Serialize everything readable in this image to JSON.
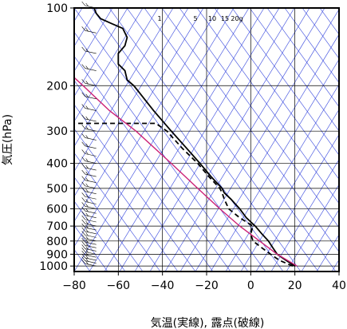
{
  "chart_data": {
    "type": "line",
    "title": "",
    "xlabel": "気温(実線), 露点(破線)",
    "ylabel": "気圧(hPa)",
    "xlim": [
      -80,
      40
    ],
    "ylim": [
      1050,
      100
    ],
    "y_scale": "log",
    "x_ticks": [
      "−80",
      "−60",
      "−40",
      "−20",
      "0",
      "20",
      "40"
    ],
    "x_tick_values": [
      -80,
      -60,
      -40,
      -20,
      0,
      20,
      40
    ],
    "y_ticks": [
      "100",
      "200",
      "300",
      "400",
      "500",
      "600",
      "700",
      "800",
      "900",
      "1000"
    ],
    "y_tick_values": [
      100,
      200,
      300,
      400,
      500,
      600,
      700,
      800,
      900,
      1000
    ],
    "mixing_ratio_labels": [
      "1",
      "5",
      "10",
      "15",
      "20g"
    ],
    "series": [
      {
        "style": "solid",
        "color": "#000000",
        "points": [
          [
            20,
            1000
          ],
          [
            18,
            975
          ],
          [
            16,
            950
          ],
          [
            14,
            925
          ],
          [
            12,
            900
          ],
          [
            10,
            850
          ],
          [
            8,
            800
          ],
          [
            5,
            750
          ],
          [
            2,
            700
          ],
          [
            -2,
            650
          ],
          [
            -5,
            600
          ],
          [
            -9,
            550
          ],
          [
            -12,
            520
          ],
          [
            -13,
            500
          ],
          [
            -18,
            450
          ],
          [
            -23,
            400
          ],
          [
            -29,
            350
          ],
          [
            -36,
            300
          ],
          [
            -44,
            250
          ],
          [
            -51,
            210
          ],
          [
            -53,
            200
          ],
          [
            -56,
            190
          ],
          [
            -57,
            175
          ],
          [
            -60,
            165
          ],
          [
            -60,
            150
          ],
          [
            -57,
            140
          ],
          [
            -56,
            130
          ],
          [
            -58,
            120
          ],
          [
            -63,
            115
          ],
          [
            -68,
            110
          ],
          [
            -70,
            105
          ],
          [
            -71,
            100
          ]
        ]
      },
      {
        "style": "dashed",
        "color": "#000000",
        "points": [
          [
            19,
            1000
          ],
          [
            16,
            975
          ],
          [
            13,
            950
          ],
          [
            11,
            925
          ],
          [
            9,
            900
          ],
          [
            5,
            850
          ],
          [
            1,
            800
          ],
          [
            0,
            750
          ],
          [
            1,
            700
          ],
          [
            -5,
            650
          ],
          [
            -10,
            600
          ],
          [
            -12,
            550
          ],
          [
            -13,
            520
          ],
          [
            -14,
            500
          ],
          [
            -19,
            450
          ],
          [
            -24,
            400
          ],
          [
            -31,
            350
          ],
          [
            -38,
            300
          ],
          [
            -43,
            280
          ],
          [
            -80,
            280
          ]
        ]
      },
      {
        "style": "solid",
        "color": "#cc2277",
        "points": [
          [
            21,
            1000
          ],
          [
            12,
            900
          ],
          [
            4,
            800
          ],
          [
            -5,
            700
          ],
          [
            -14,
            600
          ],
          [
            -24,
            500
          ],
          [
            -36,
            400
          ],
          [
            -52,
            300
          ],
          [
            -64,
            250
          ],
          [
            -76,
            200
          ],
          [
            -85,
            170
          ]
        ]
      }
    ],
    "wind_barbs": "right column at x=-70, from 1000 to 100 hPa"
  }
}
